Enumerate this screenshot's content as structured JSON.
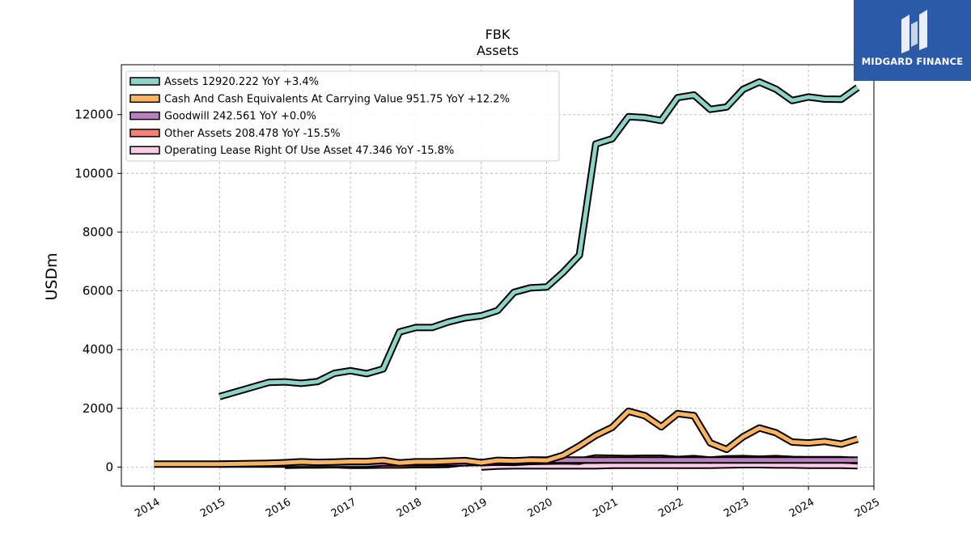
{
  "chart_data": {
    "type": "line",
    "title": "FBK",
    "subtitle": "Assets",
    "ylabel": "USDm",
    "xlabel": "",
    "xlim": [
      2013.5,
      2025.0
    ],
    "ylim": [
      -650,
      13700
    ],
    "yticks": [
      0,
      2000,
      4000,
      6000,
      8000,
      10000,
      12000
    ],
    "xticks": [
      "2014",
      "2015",
      "2016",
      "2017",
      "2018",
      "2019",
      "2020",
      "2021",
      "2022",
      "2023",
      "2024",
      "2025"
    ],
    "grid": true,
    "legend_position": "top-left",
    "series": [
      {
        "name": "Assets",
        "legend": "Assets  12920.222 YoY +3.4%",
        "color": "#8dd3c7",
        "x": [
          "2015-01",
          "2015-10",
          "2016-01",
          "2016-04",
          "2016-07",
          "2016-10",
          "2017-01",
          "2017-04",
          "2017-07",
          "2017-10",
          "2018-01",
          "2018-04",
          "2018-07",
          "2018-10",
          "2019-01",
          "2019-04",
          "2019-07",
          "2019-10",
          "2020-01",
          "2020-04",
          "2020-07",
          "2020-10",
          "2021-01",
          "2021-04",
          "2021-07",
          "2021-10",
          "2022-01",
          "2022-04",
          "2022-07",
          "2022-10",
          "2023-01",
          "2023-04",
          "2023-07",
          "2023-10",
          "2024-01",
          "2024-04",
          "2024-07",
          "2024-10"
        ],
        "y": [
          2400,
          2880,
          2900,
          2850,
          2910,
          3190,
          3280,
          3180,
          3340,
          4600,
          4750,
          4750,
          4940,
          5080,
          5150,
          5330,
          5950,
          6100,
          6130,
          6630,
          7220,
          11000,
          11180,
          11930,
          11900,
          11800,
          12580,
          12670,
          12180,
          12260,
          12860,
          13110,
          12870,
          12480,
          12600,
          12530,
          12520,
          12920
        ]
      },
      {
        "name": "Cash And Cash Equivalents At Carrying Value",
        "legend": "Cash And Cash Equivalents At Carrying Value  951.75 YoY +12.2%",
        "color": "#fdb462",
        "x": [
          "2014-01",
          "2015-01",
          "2015-10",
          "2016-01",
          "2016-04",
          "2016-07",
          "2016-10",
          "2017-01",
          "2017-04",
          "2017-07",
          "2017-10",
          "2018-01",
          "2018-04",
          "2018-07",
          "2018-10",
          "2019-01",
          "2019-04",
          "2019-07",
          "2019-10",
          "2020-01",
          "2020-04",
          "2020-07",
          "2020-10",
          "2021-01",
          "2021-04",
          "2021-07",
          "2021-10",
          "2022-01",
          "2022-04",
          "2022-07",
          "2022-10",
          "2023-01",
          "2023-04",
          "2023-07",
          "2023-10",
          "2024-01",
          "2024-04",
          "2024-07",
          "2024-10"
        ],
        "y": [
          100,
          100,
          130,
          150,
          180,
          160,
          170,
          190,
          190,
          230,
          140,
          180,
          180,
          200,
          220,
          150,
          230,
          210,
          240,
          230,
          400,
          720,
          1080,
          1350,
          1900,
          1750,
          1370,
          1820,
          1750,
          820,
          600,
          1030,
          1330,
          1170,
          850,
          820,
          870,
          780,
          950
        ]
      },
      {
        "name": "Goodwill",
        "legend": "Goodwill  242.561 YoY +0.0%",
        "color": "#bc80bd",
        "x": [
          "2015-01",
          "2016-01",
          "2016-04",
          "2016-07",
          "2016-10",
          "2017-01",
          "2017-04",
          "2017-07",
          "2017-10",
          "2018-01",
          "2018-04",
          "2018-07",
          "2018-10",
          "2019-01",
          "2019-04",
          "2019-07",
          "2019-10",
          "2020-01",
          "2020-04",
          "2020-07",
          "2020-10",
          "2021-01",
          "2021-04",
          "2021-07",
          "2021-10",
          "2022-01",
          "2022-04",
          "2022-07",
          "2022-10",
          "2023-01",
          "2023-04",
          "2023-07",
          "2023-10",
          "2024-01",
          "2024-04",
          "2024-07",
          "2024-10"
        ],
        "y": [
          100,
          100,
          100,
          100,
          100,
          100,
          100,
          140,
          140,
          140,
          140,
          140,
          140,
          160,
          170,
          170,
          240,
          240,
          240,
          240,
          240,
          240,
          240,
          240,
          240,
          240,
          240,
          240,
          240,
          240,
          240,
          240,
          240,
          240,
          240,
          240,
          240
        ]
      },
      {
        "name": "Other Assets",
        "legend": "Other Assets  208.478 YoY -15.5%",
        "color": "#fb8072",
        "x": [
          "2016-01",
          "2016-04",
          "2016-07",
          "2016-10",
          "2017-01",
          "2017-04",
          "2017-07",
          "2017-10",
          "2018-01",
          "2018-04",
          "2018-07",
          "2018-10",
          "2019-01",
          "2019-04",
          "2019-07",
          "2019-10",
          "2020-01",
          "2020-04",
          "2020-07",
          "2020-10",
          "2021-01",
          "2021-04",
          "2021-07",
          "2021-10",
          "2022-01",
          "2022-04",
          "2022-07",
          "2022-10",
          "2023-01",
          "2023-04",
          "2023-07",
          "2023-10",
          "2024-01",
          "2024-04",
          "2024-07",
          "2024-10"
        ],
        "y": [
          60,
          70,
          70,
          80,
          60,
          60,
          70,
          70,
          80,
          80,
          90,
          160,
          150,
          170,
          160,
          190,
          200,
          210,
          200,
          310,
          300,
          290,
          300,
          300,
          260,
          290,
          240,
          280,
          290,
          270,
          290,
          260,
          250,
          250,
          250,
          208
        ]
      },
      {
        "name": "Operating Lease Right Of Use Asset",
        "legend": "Operating Lease Right Of Use Asset  47.346 YoY -15.8%",
        "color": "#fccde5",
        "x": [
          "2019-01",
          "2019-04",
          "2019-07",
          "2019-10",
          "2020-01",
          "2020-04",
          "2020-07",
          "2020-10",
          "2021-01",
          "2021-04",
          "2021-07",
          "2021-10",
          "2022-01",
          "2022-04",
          "2022-07",
          "2022-10",
          "2023-01",
          "2023-04",
          "2023-07",
          "2023-10",
          "2024-01",
          "2024-04",
          "2024-07",
          "2024-10"
        ],
        "y": [
          0,
          30,
          40,
          40,
          40,
          40,
          40,
          40,
          60,
          60,
          60,
          60,
          60,
          60,
          60,
          70,
          80,
          80,
          70,
          70,
          60,
          60,
          60,
          47
        ]
      }
    ]
  },
  "branding": {
    "logo_text": "MIDGARD FINANCE"
  }
}
